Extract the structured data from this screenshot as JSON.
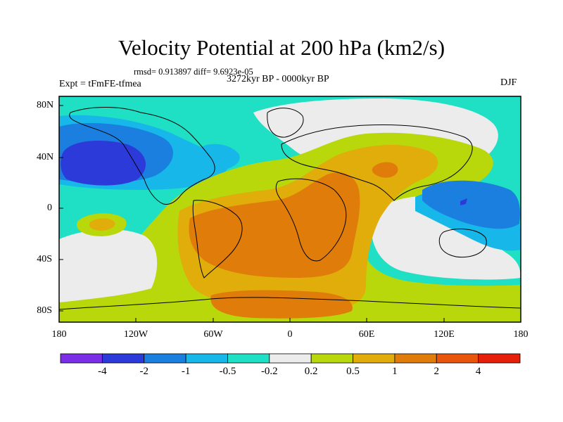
{
  "title": "Velocity Potential at 200 hPa (km2/s)",
  "stats": "rmsd= 0.913897 diff= 9.6923e-05",
  "experiment": "Expt = tFmFE-tfmea",
  "period": "3272kyr BP - 0000kyr BP",
  "season": "DJF",
  "lon_ticks": [
    "180",
    "120W",
    "60W",
    "0",
    "60E",
    "120E",
    "180"
  ],
  "lat_ticks": [
    "80N",
    "40N",
    "0",
    "40S",
    "80S"
  ],
  "colorbar": {
    "labels": [
      "-4",
      "-2",
      "-1",
      "-0.5",
      "-0.2",
      "0.2",
      "0.5",
      "1",
      "2",
      "4"
    ],
    "colors": [
      "#7b2ee8",
      "#2b3ad8",
      "#1b7fe0",
      "#17b7ea",
      "#1fe0c4",
      "#ececec",
      "#b8d80c",
      "#e0ad0b",
      "#e07d0a",
      "#e8550b",
      "#e61f0a"
    ]
  },
  "map_colors": {
    "neg_strong": "#2b3ad8",
    "neg_mid": "#1b7fe0",
    "neg_weak": "#17b7ea",
    "neg_light": "#1fe0c4",
    "neutral": "#ececec",
    "pos_light": "#b8d80c",
    "pos_mid": "#e0ad0b",
    "pos_strong": "#e07d0a"
  }
}
